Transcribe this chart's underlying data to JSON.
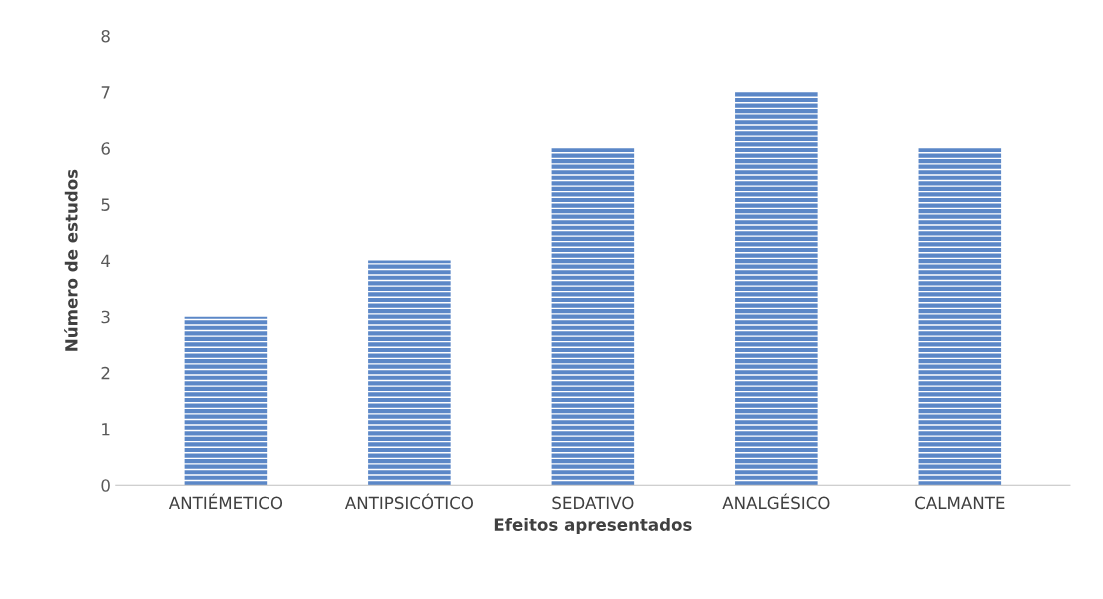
{
  "chart_data": {
    "type": "bar",
    "xlabel": "Efeitos apresentados",
    "ylabel": "Número de estudos",
    "categories": [
      "ANTIÉMETICO",
      "ANTIPSICÓTICO",
      "SEDATIVO",
      "ANALGÉSICO",
      "CALMANTE"
    ],
    "values": [
      3,
      4,
      6,
      7,
      6
    ],
    "color": "#5b87c7",
    "ylim": [
      0,
      8
    ],
    "yticks": [
      0,
      1,
      2,
      3,
      4,
      5,
      6,
      7,
      8
    ],
    "grid": false,
    "legend": false
  }
}
